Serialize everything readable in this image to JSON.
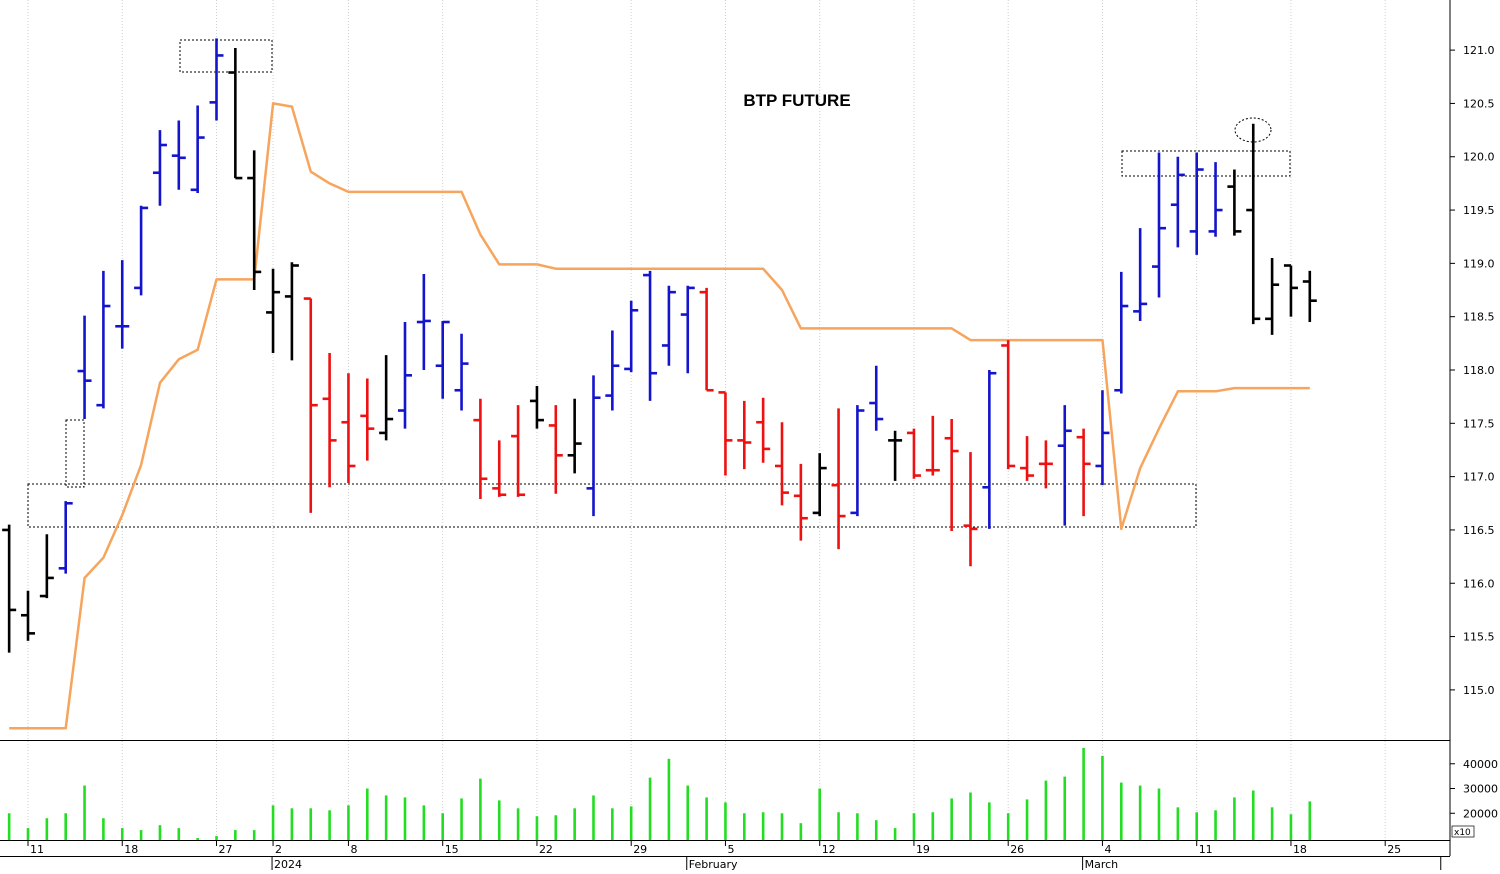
{
  "chart_data": {
    "type": "ohlc",
    "title": "BTP FUTURE",
    "categories": [
      null,
      "11",
      null,
      null,
      null,
      null,
      "18",
      null,
      null,
      null,
      null,
      "27",
      null,
      null,
      "2",
      null,
      null,
      null,
      "8",
      null,
      null,
      null,
      null,
      "15",
      null,
      null,
      null,
      null,
      "22",
      null,
      null,
      null,
      null,
      "29",
      null,
      null,
      null,
      null,
      "5",
      null,
      null,
      null,
      null,
      "12",
      null,
      null,
      null,
      null,
      "19",
      null,
      null,
      null,
      null,
      "26",
      null,
      null,
      null,
      null,
      "4",
      null,
      null,
      null,
      null,
      "11",
      null,
      null,
      null,
      null,
      "18",
      null,
      null,
      null,
      null,
      "25",
      null,
      null,
      null
    ],
    "month_labels": [
      null,
      null,
      null,
      null,
      null,
      null,
      null,
      null,
      null,
      null,
      null,
      null,
      null,
      null,
      "2024",
      null,
      null,
      null,
      null,
      null,
      null,
      null,
      null,
      null,
      null,
      null,
      null,
      null,
      null,
      null,
      null,
      null,
      null,
      null,
      null,
      null,
      "February",
      null,
      null,
      null,
      null,
      null,
      null,
      null,
      null,
      null,
      null,
      null,
      null,
      null,
      null,
      null,
      null,
      null,
      null,
      null,
      null,
      "March",
      null,
      null,
      null,
      null,
      null,
      null,
      null,
      null,
      null,
      null,
      null,
      null,
      null,
      null,
      null,
      null,
      null,
      null
    ],
    "open": [
      116.5,
      115.7,
      115.88,
      116.14,
      117.99,
      117.67,
      118.41,
      118.77,
      119.85,
      120.01,
      119.69,
      120.51,
      120.79,
      119.8,
      118.54,
      118.69,
      118.67,
      117.73,
      117.51,
      117.57,
      117.41,
      117.62,
      118.45,
      118.04,
      117.81,
      117.53,
      116.89,
      117.38,
      117.71,
      117.48,
      117.2,
      116.89,
      117.76,
      118.01,
      118.89,
      118.23,
      118.52,
      118.73,
      117.79,
      117.34,
      117.51,
      117.1,
      116.82,
      116.66,
      116.92,
      116.66,
      117.69,
      117.34,
      117.41,
      117.06,
      117.36,
      116.54,
      116.9,
      118.23,
      117.08,
      117.12,
      117.29,
      117.37,
      117.1,
      117.81,
      118.55,
      118.97,
      119.55,
      119.3,
      119.3,
      119.72,
      119.5,
      118.48,
      118.98,
      118.83,
      null,
      null,
      null,
      null,
      null,
      null,
      null
    ],
    "high": [
      116.55,
      115.93,
      116.46,
      116.77,
      118.51,
      118.93,
      119.03,
      119.54,
      120.25,
      120.34,
      120.48,
      121.11,
      121.02,
      120.06,
      118.95,
      119.01,
      118.67,
      118.16,
      117.97,
      117.92,
      118.14,
      118.45,
      118.9,
      118.46,
      118.34,
      117.73,
      117.34,
      117.67,
      117.85,
      117.67,
      117.73,
      117.95,
      118.37,
      118.65,
      118.93,
      118.79,
      118.79,
      118.77,
      117.79,
      117.71,
      117.74,
      117.51,
      117.12,
      117.22,
      117.64,
      117.67,
      118.04,
      117.43,
      117.45,
      117.57,
      117.54,
      117.23,
      118.0,
      118.28,
      117.38,
      117.34,
      117.67,
      117.45,
      117.81,
      118.92,
      119.33,
      120.04,
      120.0,
      120.04,
      119.95,
      119.88,
      120.31,
      119.05,
      118.98,
      118.93,
      null,
      null,
      null,
      null,
      null,
      null,
      null
    ],
    "low": [
      115.35,
      115.46,
      115.86,
      116.09,
      117.54,
      117.64,
      118.2,
      118.7,
      119.54,
      119.69,
      119.66,
      120.34,
      119.8,
      118.75,
      118.16,
      118.09,
      116.66,
      116.9,
      116.94,
      117.15,
      117.34,
      117.45,
      118.0,
      117.73,
      117.62,
      116.79,
      116.81,
      116.81,
      117.45,
      116.84,
      117.03,
      116.63,
      117.62,
      117.98,
      117.71,
      118.04,
      117.97,
      117.81,
      117.01,
      117.07,
      117.13,
      116.73,
      116.4,
      116.63,
      116.32,
      116.63,
      117.43,
      116.96,
      116.98,
      117.01,
      116.49,
      116.16,
      116.51,
      117.07,
      116.96,
      116.89,
      116.54,
      116.63,
      116.92,
      117.78,
      118.46,
      118.68,
      119.15,
      119.08,
      119.25,
      119.26,
      118.43,
      118.33,
      118.5,
      118.45,
      null,
      null,
      null,
      null,
      null,
      null,
      null
    ],
    "close": [
      115.75,
      115.53,
      116.05,
      116.75,
      117.9,
      118.6,
      118.41,
      119.52,
      120.11,
      119.99,
      120.18,
      120.95,
      119.8,
      118.92,
      118.73,
      118.98,
      117.67,
      117.34,
      117.1,
      117.45,
      117.54,
      117.95,
      118.46,
      118.45,
      118.06,
      116.98,
      116.83,
      116.83,
      117.53,
      117.2,
      117.31,
      117.74,
      118.04,
      118.56,
      117.97,
      118.73,
      118.77,
      117.81,
      117.34,
      117.32,
      117.26,
      116.85,
      116.61,
      117.08,
      116.63,
      117.62,
      117.54,
      117.34,
      117.01,
      117.06,
      117.24,
      116.51,
      117.97,
      117.1,
      117.01,
      117.12,
      117.43,
      117.12,
      117.41,
      118.6,
      118.62,
      119.33,
      119.83,
      119.88,
      119.5,
      119.3,
      118.48,
      118.8,
      118.77,
      118.65,
      null,
      null,
      null,
      null,
      null,
      null,
      null
    ],
    "bar_colors": [
      "#000000",
      "#000000",
      "#000000",
      "#1414cc",
      "#1414cc",
      "#1414cc",
      "#1414cc",
      "#1414cc",
      "#1414cc",
      "#1414cc",
      "#1414cc",
      "#1414cc",
      "#000000",
      "#000000",
      "#000000",
      "#000000",
      "#ee1111",
      "#ee1111",
      "#ee1111",
      "#ee1111",
      "#000000",
      "#1414cc",
      "#1414cc",
      "#1414cc",
      "#1414cc",
      "#ee1111",
      "#ee1111",
      "#ee1111",
      "#000000",
      "#ee1111",
      "#000000",
      "#1414cc",
      "#1414cc",
      "#1414cc",
      "#1414cc",
      "#1414cc",
      "#1414cc",
      "#ee1111",
      "#ee1111",
      "#ee1111",
      "#ee1111",
      "#ee1111",
      "#ee1111",
      "#000000",
      "#ee1111",
      "#1414cc",
      "#1414cc",
      "#000000",
      "#ee1111",
      "#ee1111",
      "#ee1111",
      "#ee1111",
      "#1414cc",
      "#ee1111",
      "#ee1111",
      "#ee1111",
      "#1414cc",
      "#ee1111",
      "#1414cc",
      "#1414cc",
      "#1414cc",
      "#1414cc",
      "#1414cc",
      "#1414cc",
      "#1414cc",
      "#000000",
      "#000000",
      "#000000",
      "#000000",
      "#000000",
      null,
      null,
      null,
      null,
      null,
      null,
      null
    ],
    "ylim": [
      114.53,
      121.47
    ],
    "yticks": [
      {
        "value": 115,
        "label": "115.0"
      },
      {
        "value": 115.5,
        "label": "115.5"
      },
      {
        "value": 116,
        "label": "116.0"
      },
      {
        "value": 116.5,
        "label": "116.5"
      },
      {
        "value": 117,
        "label": "117.0"
      },
      {
        "value": 117.5,
        "label": "117.5"
      },
      {
        "value": 118,
        "label": "118.0"
      },
      {
        "value": 118.5,
        "label": "118.5"
      },
      {
        "value": 119,
        "label": "119.0"
      },
      {
        "value": 119.5,
        "label": "119.5"
      },
      {
        "value": 120,
        "label": "120.0"
      },
      {
        "value": 120.5,
        "label": "120.5"
      },
      {
        "value": 121,
        "label": "121.0"
      }
    ],
    "line": {
      "color": "#f7a45c",
      "values": [
        114.64,
        114.64,
        114.64,
        114.64,
        116.05,
        116.24,
        116.64,
        117.11,
        117.88,
        118.1,
        118.19,
        118.85,
        118.85,
        118.85,
        120.5,
        120.47,
        119.86,
        119.75,
        119.67,
        119.67,
        119.67,
        119.67,
        119.67,
        119.67,
        119.67,
        119.27,
        118.99,
        118.99,
        118.99,
        118.95,
        118.95,
        118.95,
        118.95,
        118.95,
        118.95,
        118.95,
        118.95,
        118.95,
        118.95,
        118.95,
        118.95,
        118.75,
        118.39,
        118.39,
        118.39,
        118.39,
        118.39,
        118.39,
        118.39,
        118.39,
        118.39,
        118.28,
        118.28,
        118.28,
        118.28,
        118.28,
        118.28,
        118.28,
        118.28,
        116.51,
        117.08,
        117.45,
        117.8,
        117.8,
        117.8,
        117.83,
        117.83,
        117.83,
        117.83,
        117.83,
        null,
        null,
        null,
        null,
        null,
        null,
        null
      ]
    },
    "volume": {
      "color": "#22dd22",
      "values": [
        20000,
        14000,
        18000,
        20000,
        31200,
        18000,
        14000,
        13200,
        15200,
        14000,
        10000,
        10800,
        13200,
        13200,
        23200,
        22000,
        22000,
        21200,
        23200,
        30000,
        27200,
        26400,
        23200,
        20000,
        26000,
        34000,
        25200,
        22000,
        18800,
        19200,
        22000,
        27200,
        22000,
        22800,
        34400,
        42000,
        31200,
        26400,
        24400,
        20000,
        20400,
        20000,
        16000,
        30000,
        20400,
        20000,
        17200,
        14000,
        20000,
        20400,
        26000,
        28400,
        24400,
        20000,
        25600,
        33200,
        34800,
        46400,
        43200,
        32400,
        31200,
        30000,
        22400,
        20400,
        21200,
        26400,
        29200,
        22400,
        19600,
        24800,
        null,
        null,
        null,
        null,
        null,
        null,
        null
      ],
      "ylim": [
        9200,
        49200
      ],
      "yticks": [
        20000,
        30000,
        40000
      ],
      "unit_label": "x10"
    },
    "grid": true
  }
}
